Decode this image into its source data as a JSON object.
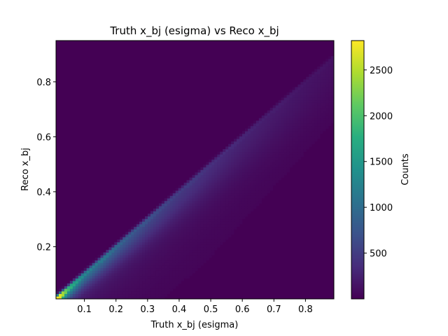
{
  "chart_data": {
    "type": "heatmap",
    "title": "Truth x_bj (esigma) vs Reco x_bj",
    "xlabel": "Truth x_bj (esigma)",
    "ylabel": "Reco x_bj",
    "xlim": [
      0.01,
      0.89
    ],
    "ylim": [
      0.01,
      0.95
    ],
    "x_ticks": [
      0.1,
      0.2,
      0.3,
      0.4,
      0.5,
      0.6,
      0.7,
      0.8
    ],
    "y_ticks": [
      0.2,
      0.4,
      0.6,
      0.8
    ],
    "colormap": "viridis",
    "colorbar": {
      "label": "Counts",
      "range": [
        0,
        2820
      ],
      "ticks": [
        500,
        1000,
        1500,
        2000,
        2500
      ]
    },
    "bins": {
      "nx": 100,
      "ny": 100
    },
    "description_points": [
      {
        "x": 0.02,
        "y": 0.02,
        "count": 2800
      },
      {
        "x": 0.05,
        "y": 0.05,
        "count": 1900
      },
      {
        "x": 0.1,
        "y": 0.1,
        "count": 1300
      },
      {
        "x": 0.2,
        "y": 0.2,
        "count": 950
      },
      {
        "x": 0.3,
        "y": 0.3,
        "count": 700
      },
      {
        "x": 0.4,
        "y": 0.4,
        "count": 520
      },
      {
        "x": 0.5,
        "y": 0.5,
        "count": 400
      },
      {
        "x": 0.6,
        "y": 0.6,
        "count": 300
      },
      {
        "x": 0.7,
        "y": 0.7,
        "count": 230
      },
      {
        "x": 0.8,
        "y": 0.8,
        "count": 170
      },
      {
        "x": 0.88,
        "y": 0.88,
        "count": 130
      }
    ],
    "grid": false,
    "legend": "none"
  }
}
